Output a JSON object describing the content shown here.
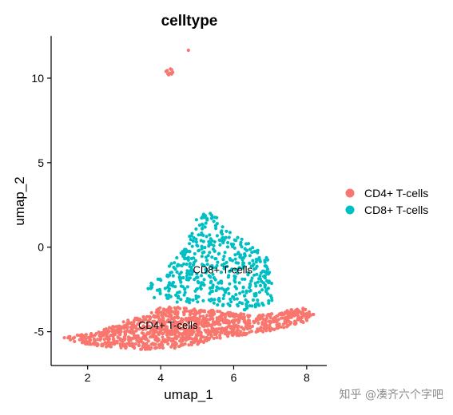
{
  "watermark": "知乎 @凑齐六个字吧",
  "colors": {
    "CD4": "#F8766D",
    "CD8": "#00BFC4"
  },
  "chart_data": {
    "type": "scatter",
    "title": "celltype",
    "xlabel": "umap_1",
    "ylabel": "umap_2",
    "xlim": [
      1.0,
      8.55
    ],
    "ylim": [
      -7.0,
      12.5
    ],
    "xticks": [
      2,
      4,
      6,
      8
    ],
    "yticks": [
      -5,
      0,
      5,
      10
    ],
    "grid": false,
    "legend_position": "right",
    "series": [
      {
        "name": "CD4+ T-cells",
        "color": "#F8766D",
        "label": {
          "text": "CD4+ T-cells",
          "x": 4.2,
          "y": -4.6
        },
        "outliers": [
          [
            4.18,
            10.45
          ],
          [
            4.25,
            10.3
          ],
          [
            4.3,
            10.5
          ],
          [
            4.22,
            10.2
          ],
          [
            4.33,
            10.35
          ],
          [
            4.2,
            10.25
          ],
          [
            4.27,
            10.55
          ],
          [
            4.15,
            10.4
          ],
          [
            4.3,
            10.25
          ],
          [
            4.76,
            11.65
          ]
        ],
        "bulk": [
          [
            1.35,
            -5.35
          ],
          [
            1.8,
            -5.15
          ],
          [
            2.3,
            -5.0
          ],
          [
            2.8,
            -4.55
          ],
          [
            3.2,
            -4.25
          ],
          [
            3.6,
            -4.05
          ],
          [
            4.0,
            -3.5
          ],
          [
            4.5,
            -3.55
          ],
          [
            5.0,
            -3.65
          ],
          [
            5.5,
            -3.7
          ],
          [
            6.0,
            -3.9
          ],
          [
            6.5,
            -4.0
          ],
          [
            7.0,
            -3.95
          ],
          [
            7.5,
            -3.7
          ],
          [
            7.9,
            -3.6
          ],
          [
            8.2,
            -3.95
          ],
          [
            8.0,
            -4.4
          ],
          [
            7.5,
            -4.7
          ],
          [
            7.0,
            -4.95
          ],
          [
            6.5,
            -5.15
          ],
          [
            6.0,
            -5.25
          ],
          [
            5.5,
            -5.45
          ],
          [
            5.0,
            -5.75
          ],
          [
            4.5,
            -5.95
          ],
          [
            4.0,
            -6.05
          ],
          [
            3.5,
            -6.05
          ],
          [
            3.0,
            -6.0
          ],
          [
            2.5,
            -5.9
          ],
          [
            2.0,
            -5.75
          ],
          [
            1.5,
            -5.55
          ]
        ],
        "bulk_count": 1100
      },
      {
        "name": "CD8+ T-cells",
        "color": "#00BFC4",
        "label": {
          "text": "CD8+ T-cells",
          "x": 5.7,
          "y": -1.3
        },
        "outliers": [],
        "bulk": [
          [
            3.85,
            -3.05
          ],
          [
            3.6,
            -2.5
          ],
          [
            3.9,
            -1.6
          ],
          [
            4.4,
            -0.75
          ],
          [
            4.75,
            0.45
          ],
          [
            4.95,
            1.5
          ],
          [
            5.1,
            2.2
          ],
          [
            5.55,
            1.95
          ],
          [
            5.95,
            0.8
          ],
          [
            6.45,
            0.2
          ],
          [
            6.95,
            -0.6
          ],
          [
            7.05,
            -1.8
          ],
          [
            7.1,
            -3.2
          ],
          [
            6.6,
            -3.6
          ],
          [
            6.2,
            -3.85
          ],
          [
            5.7,
            -3.6
          ],
          [
            5.2,
            -3.2
          ],
          [
            4.75,
            -3.35
          ],
          [
            4.3,
            -3.2
          ]
        ],
        "bulk_count": 500
      }
    ]
  }
}
